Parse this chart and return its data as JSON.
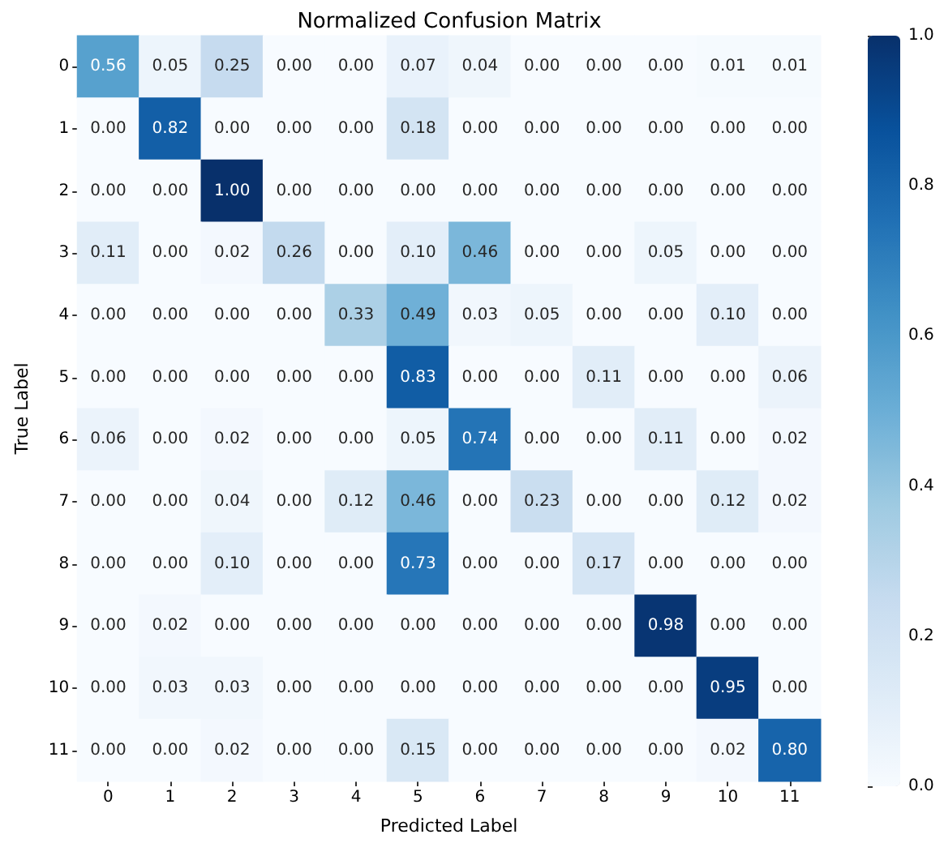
{
  "chart_data": {
    "type": "heatmap",
    "title": "Normalized Confusion Matrix",
    "xlabel": "Predicted Label",
    "ylabel": "True Label",
    "categories": [
      "0",
      "1",
      "2",
      "3",
      "4",
      "5",
      "6",
      "7",
      "8",
      "9",
      "10",
      "11"
    ],
    "y_categories": [
      "0",
      "1",
      "2",
      "3",
      "4",
      "5",
      "6",
      "7",
      "8",
      "9",
      "10",
      "11"
    ],
    "cells": [
      [
        0.56,
        0.05,
        0.25,
        0.0,
        0.0,
        0.07,
        0.04,
        0.0,
        0.0,
        0.0,
        0.01,
        0.01
      ],
      [
        0.0,
        0.82,
        0.0,
        0.0,
        0.0,
        0.18,
        0.0,
        0.0,
        0.0,
        0.0,
        0.0,
        0.0
      ],
      [
        0.0,
        0.0,
        1.0,
        0.0,
        0.0,
        0.0,
        0.0,
        0.0,
        0.0,
        0.0,
        0.0,
        0.0
      ],
      [
        0.11,
        0.0,
        0.02,
        0.26,
        0.0,
        0.1,
        0.46,
        0.0,
        0.0,
        0.05,
        0.0,
        0.0
      ],
      [
        0.0,
        0.0,
        0.0,
        0.0,
        0.33,
        0.49,
        0.03,
        0.05,
        0.0,
        0.0,
        0.1,
        0.0
      ],
      [
        0.0,
        0.0,
        0.0,
        0.0,
        0.0,
        0.83,
        0.0,
        0.0,
        0.11,
        0.0,
        0.0,
        0.06
      ],
      [
        0.06,
        0.0,
        0.02,
        0.0,
        0.0,
        0.05,
        0.74,
        0.0,
        0.0,
        0.11,
        0.0,
        0.02
      ],
      [
        0.0,
        0.0,
        0.04,
        0.0,
        0.12,
        0.46,
        0.0,
        0.23,
        0.0,
        0.0,
        0.12,
        0.02
      ],
      [
        0.0,
        0.0,
        0.1,
        0.0,
        0.0,
        0.73,
        0.0,
        0.0,
        0.17,
        0.0,
        0.0,
        0.0
      ],
      [
        0.0,
        0.02,
        0.0,
        0.0,
        0.0,
        0.0,
        0.0,
        0.0,
        0.0,
        0.98,
        0.0,
        0.0
      ],
      [
        0.0,
        0.03,
        0.03,
        0.0,
        0.0,
        0.0,
        0.0,
        0.0,
        0.0,
        0.0,
        0.95,
        0.0
      ],
      [
        0.0,
        0.0,
        0.02,
        0.0,
        0.0,
        0.15,
        0.0,
        0.0,
        0.0,
        0.0,
        0.02,
        0.8
      ]
    ],
    "cell_labels": [
      [
        "0.56",
        "0.05",
        "0.25",
        "0.00",
        "0.00",
        "0.07",
        "0.04",
        "0.00",
        "0.00",
        "0.00",
        "0.01",
        "0.01"
      ],
      [
        "0.00",
        "0.82",
        "0.00",
        "0.00",
        "0.00",
        "0.18",
        "0.00",
        "0.00",
        "0.00",
        "0.00",
        "0.00",
        "0.00"
      ],
      [
        "0.00",
        "0.00",
        "1.00",
        "0.00",
        "0.00",
        "0.00",
        "0.00",
        "0.00",
        "0.00",
        "0.00",
        "0.00",
        "0.00"
      ],
      [
        "0.11",
        "0.00",
        "0.02",
        "0.26",
        "0.00",
        "0.10",
        "0.46",
        "0.00",
        "0.00",
        "0.05",
        "0.00",
        "0.00"
      ],
      [
        "0.00",
        "0.00",
        "0.00",
        "0.00",
        "0.33",
        "0.49",
        "0.03",
        "0.05",
        "0.00",
        "0.00",
        "0.10",
        "0.00"
      ],
      [
        "0.00",
        "0.00",
        "0.00",
        "0.00",
        "0.00",
        "0.83",
        "0.00",
        "0.00",
        "0.11",
        "0.00",
        "0.00",
        "0.06"
      ],
      [
        "0.06",
        "0.00",
        "0.02",
        "0.00",
        "0.00",
        "0.05",
        "0.74",
        "0.00",
        "0.00",
        "0.11",
        "0.00",
        "0.02"
      ],
      [
        "0.00",
        "0.00",
        "0.04",
        "0.00",
        "0.12",
        "0.46",
        "0.00",
        "0.23",
        "0.00",
        "0.00",
        "0.12",
        "0.02"
      ],
      [
        "0.00",
        "0.00",
        "0.10",
        "0.00",
        "0.00",
        "0.73",
        "0.00",
        "0.00",
        "0.17",
        "0.00",
        "0.00",
        "0.00"
      ],
      [
        "0.00",
        "0.02",
        "0.00",
        "0.00",
        "0.00",
        "0.00",
        "0.00",
        "0.00",
        "0.00",
        "0.98",
        "0.00",
        "0.00"
      ],
      [
        "0.00",
        "0.03",
        "0.03",
        "0.00",
        "0.00",
        "0.00",
        "0.00",
        "0.00",
        "0.00",
        "0.00",
        "0.95",
        "0.00"
      ],
      [
        "0.00",
        "0.00",
        "0.02",
        "0.00",
        "0.00",
        "0.15",
        "0.00",
        "0.00",
        "0.00",
        "0.00",
        "0.02",
        "0.80"
      ]
    ],
    "clim": [
      0,
      1
    ],
    "cticks": [
      {
        "value": 0,
        "label": "0.0"
      },
      {
        "value": 0.2,
        "label": "0.2"
      },
      {
        "value": 0.4,
        "label": "0.4"
      },
      {
        "value": 0.6,
        "label": "0.6"
      },
      {
        "value": 0.8,
        "label": "0.8"
      },
      {
        "value": 1,
        "label": "1.0"
      }
    ]
  }
}
